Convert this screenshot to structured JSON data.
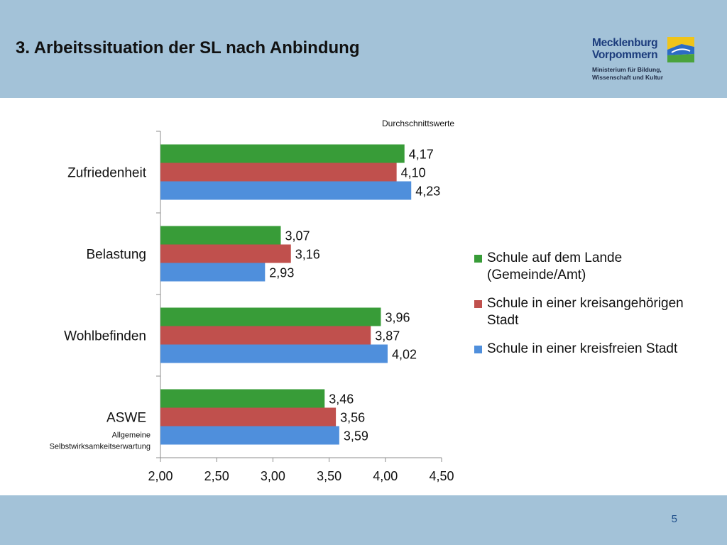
{
  "slide": {
    "title": "3. Arbeitssituation der SL nach Anbindung",
    "page_number": "5",
    "logo": {
      "line1": "Mecklenburg",
      "line2": "Vorpommern",
      "sub1": "Ministerium für Bildung,",
      "sub2": "Wissenschaft und Kultur"
    }
  },
  "colors": {
    "header": "#a3c2d8",
    "green": "#389c38",
    "red": "#c0504d",
    "blue": "#4f8fdc"
  },
  "chart_data": {
    "type": "bar",
    "orientation": "horizontal",
    "note": "Durchschnittswerte",
    "categories": [
      "Zufriedenheit",
      "Belastung",
      "Wohlbefinden",
      "ASWE"
    ],
    "category_sub": [
      "",
      "",
      "",
      "Allgemeine Selbstwirksamkeitserwartung"
    ],
    "series": [
      {
        "name": "Schule auf dem Lande (Gemeinde/Amt)",
        "color": "#389c38",
        "values": [
          4.17,
          3.07,
          3.96,
          3.46
        ],
        "labels": [
          "4,17",
          "3,07",
          "3,96",
          "3,46"
        ]
      },
      {
        "name": "Schule in einer kreisangehörigen Stadt",
        "color": "#c0504d",
        "values": [
          4.1,
          3.16,
          3.87,
          3.56
        ],
        "labels": [
          "4,10",
          "3,16",
          "3,87",
          "3,56"
        ]
      },
      {
        "name": "Schule in einer kreisfreien Stadt",
        "color": "#4f8fdc",
        "values": [
          4.23,
          2.93,
          4.02,
          3.59
        ],
        "labels": [
          "4,23",
          "2,93",
          "4,02",
          "3,59"
        ]
      }
    ],
    "xlim": [
      2.0,
      4.5
    ],
    "xticks": [
      2.0,
      2.5,
      3.0,
      3.5,
      4.0,
      4.5
    ],
    "xtick_labels": [
      "2,00",
      "2,50",
      "3,00",
      "3,50",
      "4,00",
      "4,50"
    ],
    "legend_position": "right",
    "grid": false
  }
}
